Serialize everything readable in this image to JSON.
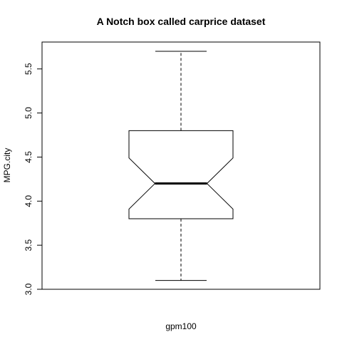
{
  "chart_data": {
    "type": "boxplot",
    "title": "A Notch box called carprice dataset",
    "xlabel": "gpm100",
    "ylabel": "MPG.city",
    "notched": true,
    "ylim": [
      3.0,
      5.8
    ],
    "y_ticks": [
      3.0,
      3.5,
      4.0,
      4.5,
      5.0,
      5.5
    ],
    "y_tick_labels": [
      "3.0",
      "3.5",
      "4.0",
      "4.5",
      "5.0",
      "5.5"
    ],
    "box": {
      "whisker_low": 3.1,
      "q1": 3.8,
      "notch_low": 3.91,
      "median": 4.2,
      "notch_high": 4.49,
      "q3": 4.8,
      "whisker_high": 5.7
    },
    "grid": false
  }
}
